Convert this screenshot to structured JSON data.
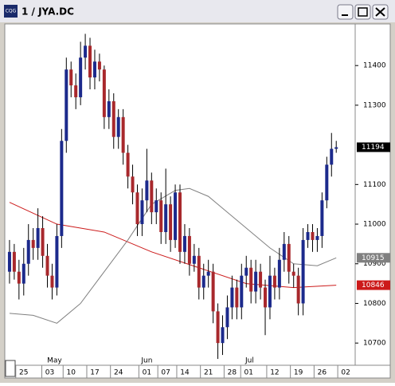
{
  "window": {
    "title": "1 / JYA.DC",
    "icon": "CQG"
  },
  "chart_data": {
    "type": "candlestick",
    "open": [
      10880,
      10930,
      10880,
      10850,
      10900,
      10960,
      10940,
      10990,
      10920,
      10870,
      10840,
      10970,
      11210,
      11390,
      11350,
      11320,
      11420,
      11450,
      11370,
      11410,
      11390,
      11270,
      11310,
      11220,
      11270,
      11180,
      11120,
      11080,
      11000,
      11060,
      11110,
      11030,
      11060,
      10980,
      11050,
      10960,
      11080,
      10930,
      10970,
      10900,
      10920,
      10840,
      10870,
      10880,
      10780,
      10700,
      10740,
      10790,
      10840,
      10790,
      10870,
      10890,
      10830,
      10880,
      10840,
      10790,
      10870,
      10840,
      10910,
      10950,
      10880,
      10870,
      10800,
      10960,
      10980,
      10960,
      10970,
      11060,
      11150,
      11190
    ],
    "high": [
      10960,
      10950,
      10910,
      10940,
      11000,
      10990,
      11040,
      11020,
      10950,
      10900,
      11000,
      11240,
      11420,
      11410,
      11380,
      11460,
      11480,
      11470,
      11440,
      11430,
      11400,
      11340,
      11330,
      11290,
      11290,
      11200,
      11150,
      11100,
      11090,
      11190,
      11130,
      11090,
      11080,
      11140,
      11070,
      11100,
      11100,
      11000,
      10990,
      10950,
      10940,
      10900,
      10910,
      10900,
      10800,
      10770,
      10820,
      10870,
      10860,
      10900,
      10920,
      10910,
      10910,
      10900,
      10860,
      10920,
      10890,
      10940,
      10980,
      10970,
      10900,
      10890,
      10990,
      11000,
      11000,
      10990,
      11080,
      11170,
      11230,
      11210
    ],
    "low": [
      10850,
      10860,
      10810,
      10820,
      10870,
      10910,
      10910,
      10890,
      10840,
      10810,
      10820,
      10940,
      11180,
      11320,
      11290,
      11300,
      11390,
      11340,
      11340,
      11360,
      11240,
      11240,
      11190,
      11190,
      11150,
      11090,
      11050,
      10970,
      10970,
      11030,
      11000,
      11000,
      10950,
      10950,
      10930,
      10940,
      10900,
      10900,
      10870,
      10880,
      10810,
      10810,
      10840,
      10750,
      10660,
      10670,
      10710,
      10760,
      10760,
      10760,
      10840,
      10800,
      10800,
      10810,
      10720,
      10760,
      10810,
      10810,
      10880,
      10850,
      10840,
      10770,
      10770,
      10940,
      10930,
      10930,
      10940,
      11040,
      11120,
      11180
    ],
    "close": [
      10930,
      10880,
      10850,
      10900,
      10960,
      10940,
      10990,
      10920,
      10870,
      10840,
      10970,
      11210,
      11390,
      11350,
      11320,
      11420,
      11450,
      11370,
      11410,
      11390,
      11270,
      11310,
      11220,
      11270,
      11180,
      11120,
      11080,
      11000,
      11060,
      11110,
      11030,
      11060,
      10980,
      11050,
      10960,
      11080,
      10930,
      10970,
      10900,
      10920,
      10840,
      10870,
      10880,
      10780,
      10700,
      10740,
      10790,
      10840,
      10790,
      10870,
      10890,
      10830,
      10880,
      10840,
      10790,
      10870,
      10840,
      10910,
      10950,
      10880,
      10870,
      10800,
      10960,
      10980,
      10960,
      10970,
      11060,
      11150,
      11190,
      11194
    ],
    "up_color": "#1c2a8c",
    "down_color": "#a8282c",
    "lines": [
      {
        "color": "#cc1a1a",
        "x": [
          0,
          10,
          20,
          30,
          40,
          50,
          60,
          69
        ],
        "values": [
          11055,
          11000,
          10980,
          10930,
          10890,
          10850,
          10840,
          10846
        ]
      },
      {
        "color": "#808080",
        "x": [
          0,
          5,
          10,
          15,
          20,
          25,
          30,
          35,
          38,
          42,
          46,
          50,
          55,
          60,
          65,
          69
        ],
        "values": [
          10775,
          10770,
          10750,
          10800,
          10880,
          10960,
          11050,
          11085,
          11090,
          11070,
          11030,
          10990,
          10940,
          10900,
          10895,
          10915
        ]
      }
    ],
    "ylim": [
      10644,
      11505
    ],
    "yticks": [
      10700,
      10800,
      10900,
      11000,
      11100,
      11300,
      11400
    ],
    "xlim": [
      -1,
      73
    ],
    "xticks": [
      {
        "value": 3,
        "label": "25"
      },
      {
        "value": 8.5,
        "label": "03"
      },
      {
        "value": 13,
        "label": "10"
      },
      {
        "value": 18,
        "label": "17"
      },
      {
        "value": 23,
        "label": "24"
      },
      {
        "value": 29,
        "label": "01"
      },
      {
        "value": 33,
        "label": "07"
      },
      {
        "value": 37,
        "label": "14"
      },
      {
        "value": 42,
        "label": "21"
      },
      {
        "value": 47,
        "label": "28"
      },
      {
        "value": 50.5,
        "label": "01"
      },
      {
        "value": 56,
        "label": "12"
      },
      {
        "value": 61,
        "label": "19"
      },
      {
        "value": 66,
        "label": "26"
      },
      {
        "value": 71,
        "label": "02"
      }
    ],
    "months": [
      {
        "value": 9.5,
        "label": "May"
      },
      {
        "value": 29,
        "label": "Jun"
      },
      {
        "value": 50.7,
        "label": "Jul"
      }
    ]
  }
}
